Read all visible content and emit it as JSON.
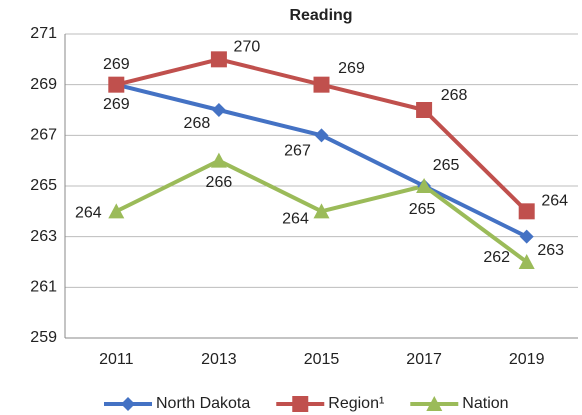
{
  "chart_data": {
    "type": "line",
    "title": "Reading",
    "categories": [
      "2011",
      "2013",
      "2015",
      "2017",
      "2019"
    ],
    "series": [
      {
        "name": "North Dakota",
        "color": "#4472c4",
        "marker": "diamond",
        "values": [
          269,
          268,
          267,
          265,
          263
        ]
      },
      {
        "name": "Region¹",
        "color": "#c0504d",
        "marker": "square",
        "values": [
          269,
          270,
          269,
          268,
          264
        ]
      },
      {
        "name": "Nation",
        "color": "#9bbb59",
        "marker": "triangle",
        "values": [
          264,
          266,
          264,
          265,
          262
        ]
      }
    ],
    "ylim": [
      259,
      271
    ],
    "yticks": [
      259,
      261,
      263,
      265,
      267,
      269,
      271
    ],
    "grid": true,
    "legend": "bottom"
  }
}
